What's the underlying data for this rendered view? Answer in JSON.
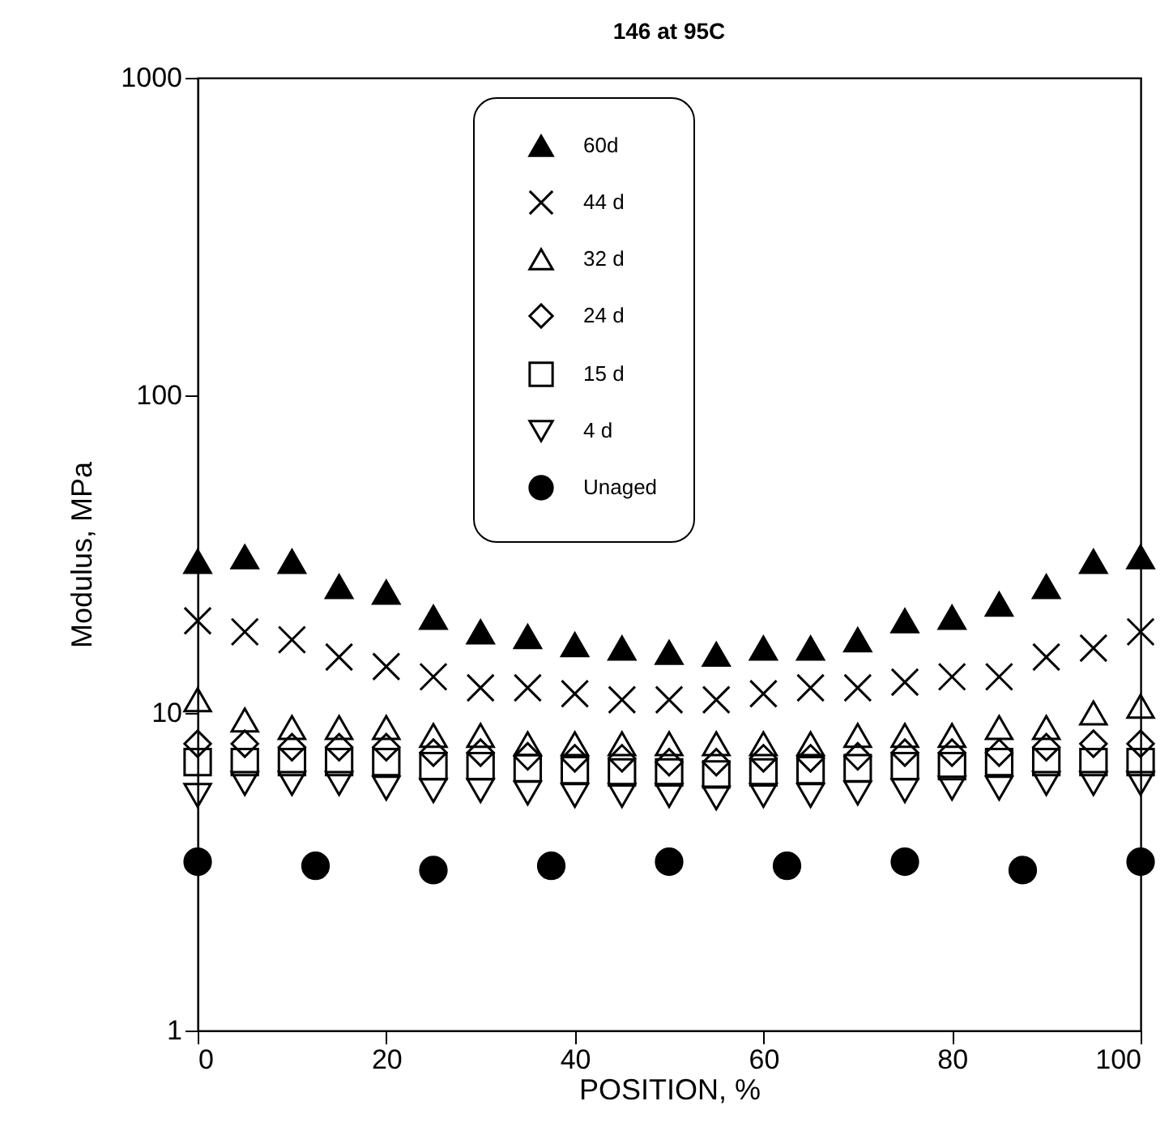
{
  "chart_data": {
    "type": "scatter",
    "title": "146 at 95C",
    "xlabel": "POSITION, %",
    "ylabel": "Modulus, MPa",
    "x": [
      0,
      5,
      10,
      15,
      20,
      25,
      30,
      35,
      40,
      45,
      50,
      55,
      60,
      65,
      70,
      75,
      80,
      85,
      90,
      95,
      100
    ],
    "series": [
      {
        "name": "60d",
        "color": "#000000",
        "marker": "triangle-filled",
        "values": [
          30,
          31,
          30,
          25,
          24,
          20,
          18,
          17.4,
          16.4,
          16,
          15.5,
          15.3,
          16,
          16,
          17,
          19.5,
          20,
          22,
          25,
          30,
          31
        ]
      },
      {
        "name": "44 d",
        "color": "#000000",
        "marker": "cross",
        "values": [
          19.5,
          18,
          17,
          15,
          14,
          13,
          12,
          12,
          11.5,
          11,
          11,
          11,
          11.5,
          12,
          12,
          12.5,
          13,
          13,
          15,
          16,
          18
        ]
      },
      {
        "name": "32 d",
        "color": "#000000",
        "marker": "triangle",
        "values": [
          11,
          9.5,
          9,
          9,
          9,
          8.5,
          8.5,
          8,
          8,
          8,
          8,
          8,
          8,
          8,
          8.5,
          8.5,
          8.5,
          9,
          9,
          10,
          10.5
        ]
      },
      {
        "name": "24 d",
        "color": "#000000",
        "marker": "diamond",
        "values": [
          8,
          8,
          7.8,
          7.8,
          7.8,
          7.5,
          7.5,
          7.3,
          7.2,
          7.2,
          7,
          7,
          7.2,
          7.2,
          7.3,
          7.5,
          7.5,
          7.5,
          7.8,
          8,
          8
        ]
      },
      {
        "name": "15 d",
        "color": "#000000",
        "marker": "square",
        "values": [
          7,
          7,
          7,
          7,
          7,
          6.8,
          6.8,
          6.7,
          6.6,
          6.5,
          6.5,
          6.4,
          6.5,
          6.6,
          6.7,
          6.8,
          6.8,
          7,
          7,
          7,
          7
        ]
      },
      {
        "name": "4 d",
        "color": "#000000",
        "marker": "triangle-down",
        "values": [
          5.5,
          6,
          6,
          6,
          5.8,
          5.7,
          5.7,
          5.6,
          5.5,
          5.5,
          5.5,
          5.4,
          5.5,
          5.5,
          5.6,
          5.7,
          5.8,
          5.8,
          6,
          6,
          6
        ]
      },
      {
        "name": "Unaged",
        "color": "#000000",
        "marker": "circle-filled",
        "x": [
          0,
          12.5,
          25,
          37.5,
          50,
          62.5,
          75,
          87.5,
          100
        ],
        "values": [
          3.4,
          3.3,
          3.2,
          3.3,
          3.4,
          3.3,
          3.4,
          3.2,
          3.4
        ]
      }
    ],
    "xlim": [
      0,
      100
    ],
    "xticks": [
      0,
      20,
      40,
      60,
      80,
      100
    ],
    "ylim": [
      1,
      1000
    ],
    "yticks": [
      1,
      10,
      100,
      1000
    ],
    "log": "y",
    "grid": false,
    "legend": "top"
  }
}
